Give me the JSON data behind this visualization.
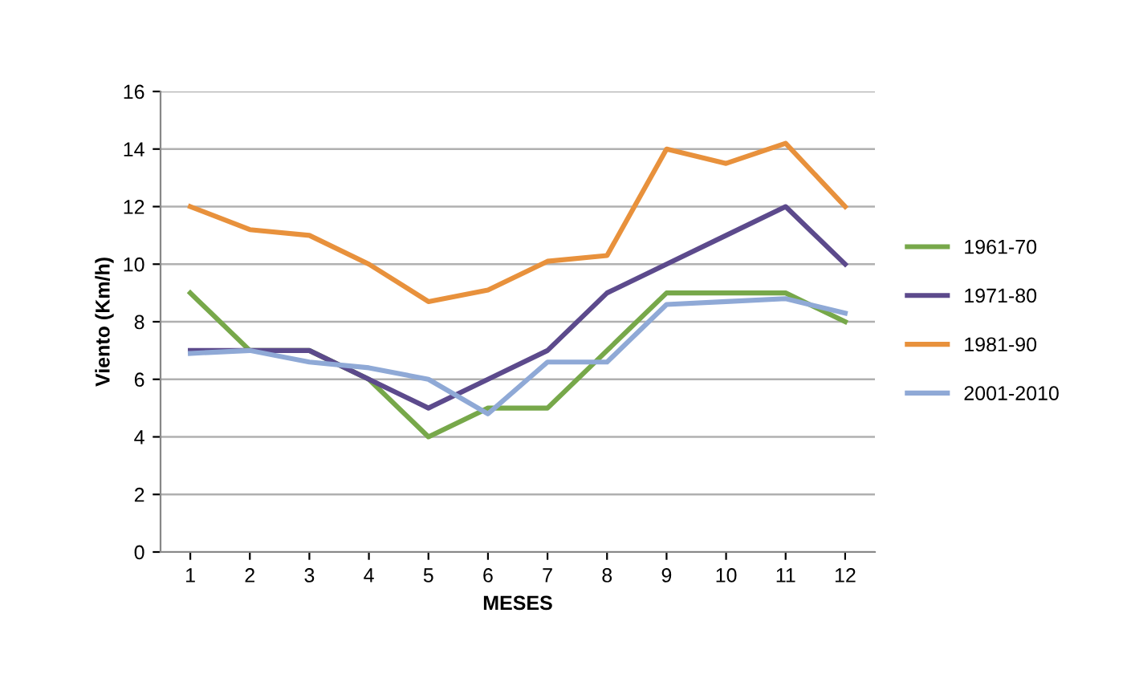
{
  "chart_data": {
    "type": "line",
    "xlabel": "MESES",
    "ylabel": "Viento (Km/h)",
    "categories": [
      "1",
      "2",
      "3",
      "4",
      "5",
      "6",
      "7",
      "8",
      "9",
      "10",
      "11",
      "12"
    ],
    "series": [
      {
        "name": "1961-70",
        "color": "#77a84a",
        "values": [
          9,
          7,
          7,
          6,
          4,
          5,
          5,
          7,
          9,
          9,
          9,
          8
        ]
      },
      {
        "name": "1971-80",
        "color": "#5c4a8c",
        "values": [
          7,
          7,
          7,
          6,
          5,
          6,
          7,
          9,
          10,
          11,
          12,
          10
        ]
      },
      {
        "name": "1981-90",
        "color": "#e8913c",
        "values": [
          12,
          11.2,
          11,
          10,
          8.7,
          9.1,
          10.1,
          10.3,
          14,
          13.5,
          14.2,
          12
        ]
      },
      {
        "name": "2001-2010",
        "color": "#8fa9d6",
        "values": [
          6.9,
          7,
          6.6,
          6.4,
          6,
          4.8,
          6.6,
          6.6,
          8.6,
          8.7,
          8.8,
          8.3
        ]
      }
    ],
    "ylim": [
      0,
      16
    ],
    "yticks": [
      0,
      2,
      4,
      6,
      8,
      10,
      12,
      14,
      16
    ],
    "grid": "y",
    "legend": "right",
    "marker": "none",
    "line_style": "solid"
  }
}
